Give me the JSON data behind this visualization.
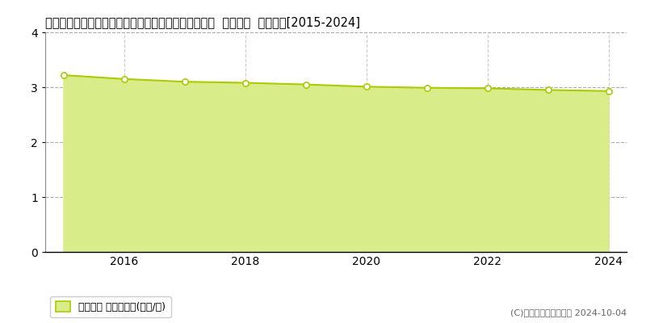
{
  "title": "広島県山県郡安芸太田町大字坪野字附ケ地４３番１外  基準地価  地価推移[2015-2024]",
  "years": [
    2015,
    2016,
    2017,
    2018,
    2019,
    2020,
    2021,
    2022,
    2023,
    2024
  ],
  "values": [
    3.22,
    3.15,
    3.1,
    3.08,
    3.05,
    3.01,
    2.99,
    2.98,
    2.95,
    2.93
  ],
  "line_color": "#aacc00",
  "fill_color": "#d8ec8a",
  "marker_face": "#ffffff",
  "marker_edge": "#aacc00",
  "ylim": [
    0,
    4
  ],
  "yticks": [
    0,
    1,
    2,
    3,
    4
  ],
  "xticks": [
    2016,
    2018,
    2020,
    2022,
    2024
  ],
  "grid_color_h": "#aaaaaa",
  "grid_color_v": "#cccccc",
  "legend_label": "基準地価 平均坪単価(万円/坪)",
  "copyright": "(C)土地価格ドットコム 2024-10-04",
  "bg_color": "#ffffff",
  "title_fontsize": 10.5,
  "axis_fontsize": 10,
  "legend_fontsize": 9
}
